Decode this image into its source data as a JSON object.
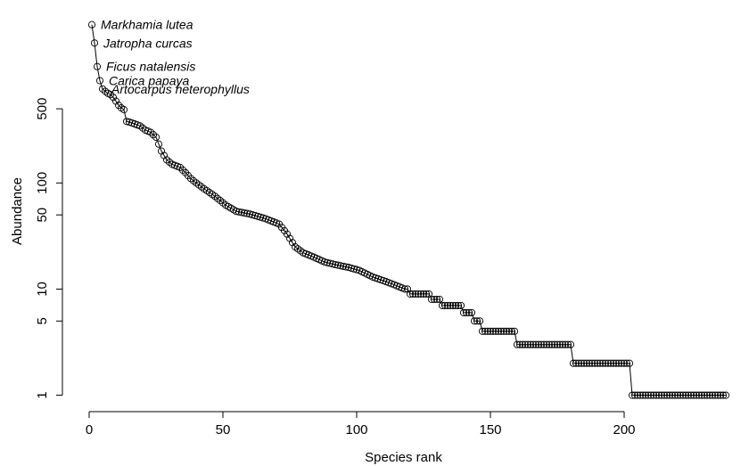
{
  "chart_data": {
    "type": "scatter",
    "xlabel": "Species rank",
    "ylabel": "Abundance",
    "xlim": [
      -10,
      245
    ],
    "ylim": [
      0.7,
      4200
    ],
    "y_scale": "log",
    "x_ticks": [
      0,
      50,
      100,
      150,
      200
    ],
    "y_ticks": [
      1,
      5,
      10,
      50,
      100,
      500
    ],
    "x_tick_labels": [
      "0",
      "50",
      "100",
      "150",
      "200"
    ],
    "y_tick_labels": [
      "1",
      "5",
      "10",
      "50",
      "100",
      "500"
    ],
    "connect_points": true,
    "grid": false,
    "legend": "none",
    "stairs": [
      {
        "from_rank": 147,
        "to_rank": 159,
        "value": 4
      },
      {
        "from_rank": 160,
        "to_rank": 180,
        "value": 3
      },
      {
        "from_rank": 181,
        "to_rank": 202,
        "value": 2
      },
      {
        "from_rank": 203,
        "to_rank": 238,
        "value": 1
      }
    ],
    "curve_control": [
      [
        1,
        3100
      ],
      [
        2,
        2080
      ],
      [
        3,
        1250
      ],
      [
        4,
        920
      ],
      [
        5,
        770
      ],
      [
        6,
        730
      ],
      [
        7,
        700
      ],
      [
        8,
        680
      ],
      [
        9,
        640
      ],
      [
        10,
        590
      ],
      [
        11,
        540
      ],
      [
        12,
        510
      ],
      [
        13,
        490
      ],
      [
        14,
        380
      ],
      [
        15,
        375
      ],
      [
        17,
        360
      ],
      [
        19,
        345
      ],
      [
        21,
        315
      ],
      [
        23,
        300
      ],
      [
        25,
        270
      ],
      [
        27,
        200
      ],
      [
        29,
        165
      ],
      [
        31,
        150
      ],
      [
        34,
        140
      ],
      [
        36,
        125
      ],
      [
        38,
        110
      ],
      [
        40,
        100
      ],
      [
        43,
        88
      ],
      [
        47,
        75
      ],
      [
        51,
        62
      ],
      [
        55,
        54
      ],
      [
        60,
        51
      ],
      [
        66,
        46
      ],
      [
        71,
        41
      ],
      [
        74,
        33
      ],
      [
        77,
        25
      ],
      [
        80,
        22
      ],
      [
        84,
        20
      ],
      [
        88,
        18
      ],
      [
        92,
        17
      ],
      [
        97,
        16
      ],
      [
        101,
        15
      ],
      [
        106,
        13
      ],
      [
        110,
        12
      ],
      [
        114,
        11
      ],
      [
        118,
        10
      ],
      [
        122,
        9
      ],
      [
        126,
        9
      ],
      [
        130,
        8
      ],
      [
        134,
        7
      ],
      [
        138,
        7
      ],
      [
        141,
        6
      ],
      [
        143,
        6
      ],
      [
        144,
        5
      ],
      [
        146,
        5
      ]
    ],
    "annotations": [
      {
        "text": "Markhamia lutea",
        "rank": 1,
        "value": 3100
      },
      {
        "text": "Jatropha curcas",
        "rank": 2,
        "value": 2080
      },
      {
        "text": "Ficus natalensis",
        "rank": 3,
        "value": 1250
      },
      {
        "text": "Carica papaya",
        "rank": 4,
        "value": 920
      },
      {
        "text": "Artocarpus heterophyllus",
        "rank": 5,
        "value": 770
      }
    ]
  }
}
